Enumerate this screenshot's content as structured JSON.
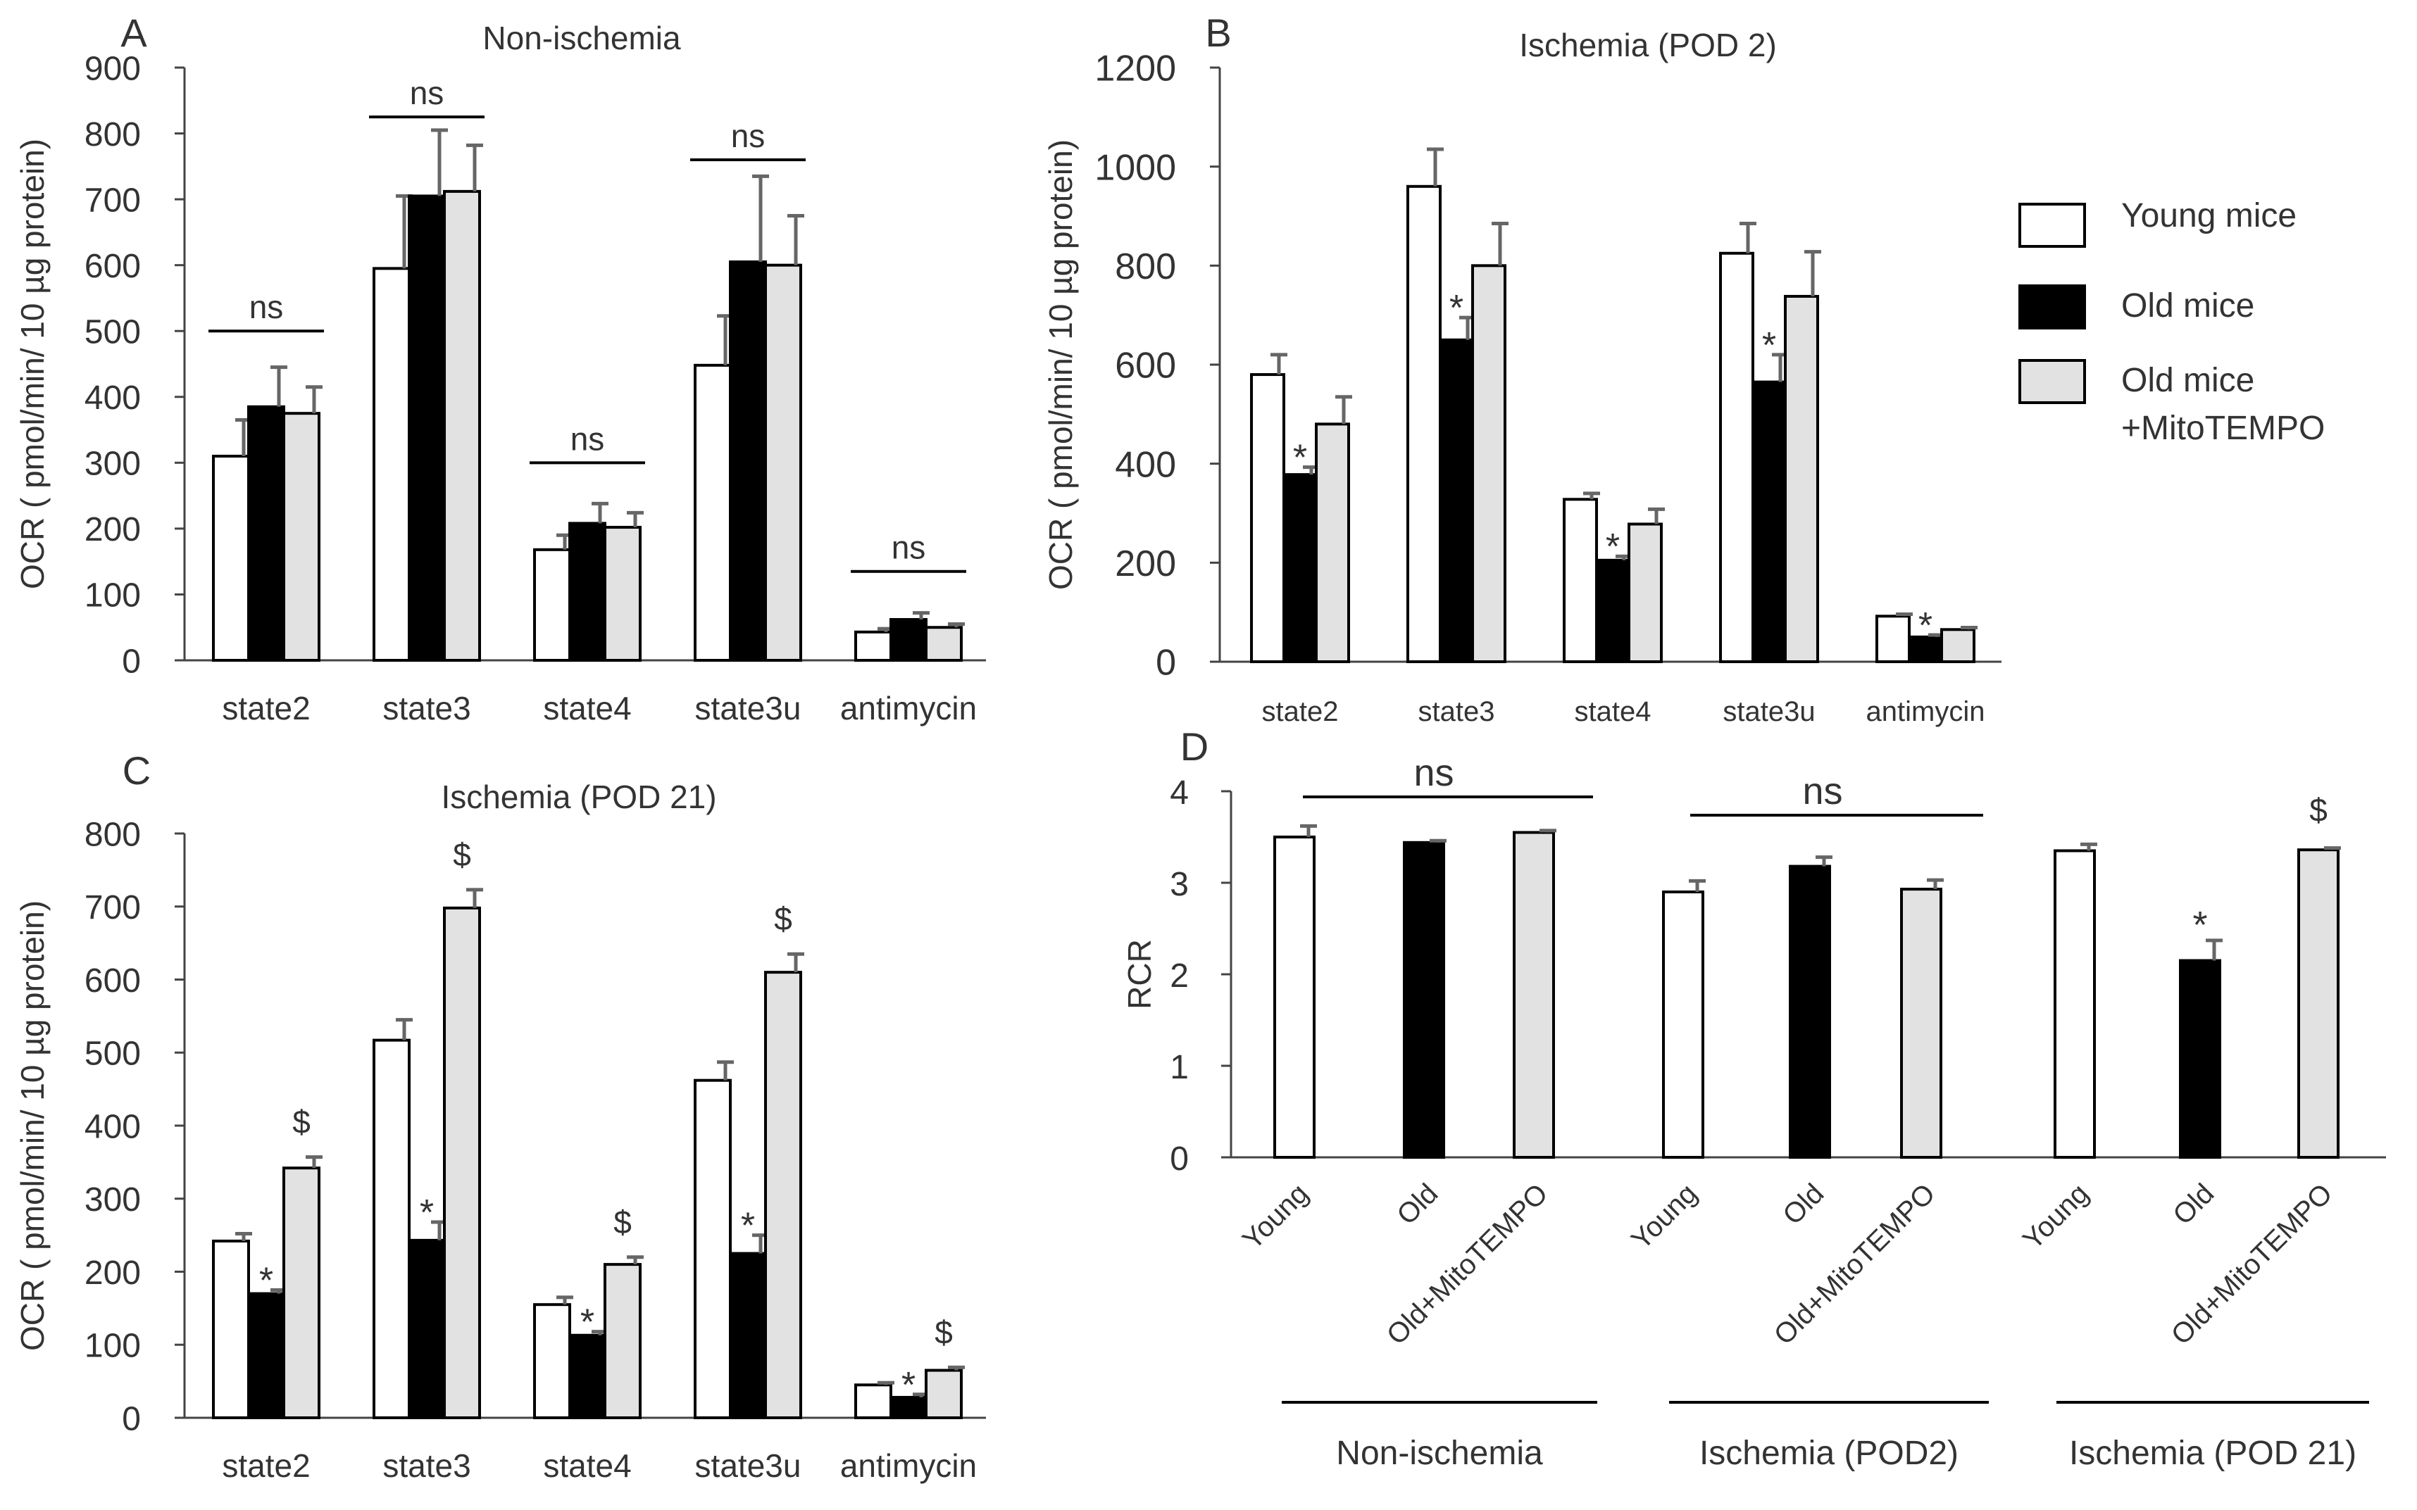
{
  "legend": {
    "items": [
      {
        "label": "Young mice",
        "fill": "#ffffff"
      },
      {
        "label": "Old mice",
        "fill": "#000000"
      },
      {
        "label": "Old mice",
        "label2": "+MitoTEMPO",
        "fill": "#e2e2e2"
      }
    ]
  },
  "chart_data": [
    {
      "id": "A",
      "type": "bar",
      "panel_label": "A",
      "title": "Non-ischemia",
      "ylabel": "OCR ( pmol/min/ 10 µg protein)",
      "xlabel": "",
      "ylim": [
        0,
        900
      ],
      "yticks": [
        0,
        100,
        200,
        300,
        400,
        500,
        600,
        700,
        800,
        900
      ],
      "categories": [
        "state2",
        "state3",
        "state4",
        "state3u",
        "antimycin"
      ],
      "series": [
        {
          "name": "Young mice",
          "color": "#ffffff",
          "values": [
            310,
            595,
            168,
            448,
            43
          ],
          "errors": [
            55,
            110,
            22,
            75,
            5
          ]
        },
        {
          "name": "Old mice",
          "color": "#000000",
          "values": [
            385,
            705,
            208,
            605,
            62
          ],
          "errors": [
            60,
            100,
            30,
            130,
            10
          ]
        },
        {
          "name": "Old mice +MitoTEMPO",
          "color": "#e2e2e2",
          "values": [
            375,
            712,
            202,
            600,
            50
          ],
          "errors": [
            40,
            70,
            22,
            75,
            5
          ]
        }
      ],
      "annotations": [
        {
          "category": "state2",
          "text": "ns",
          "line_value": 500
        },
        {
          "category": "state3",
          "text": "ns",
          "line_value": 825
        },
        {
          "category": "state4",
          "text": "ns",
          "line_value": 300
        },
        {
          "category": "state3u",
          "text": "ns",
          "line_value": 760
        },
        {
          "category": "antimycin",
          "text": "ns",
          "line_value": 135
        }
      ],
      "marks": []
    },
    {
      "id": "B",
      "type": "bar",
      "panel_label": "B",
      "title": "Ischemia (POD 2)",
      "ylabel": "OCR ( pmol/min/ 10 µg protein)",
      "xlabel": "",
      "ylim": [
        0,
        1200
      ],
      "yticks": [
        0,
        200,
        400,
        600,
        800,
        1000,
        1200
      ],
      "categories": [
        "state2",
        "state3",
        "state4",
        "state3u",
        "antimycin"
      ],
      "series": [
        {
          "name": "Young mice",
          "color": "#ffffff",
          "values": [
            580,
            960,
            328,
            825,
            92
          ],
          "errors": [
            40,
            75,
            12,
            60,
            4
          ]
        },
        {
          "name": "Old mice",
          "color": "#000000",
          "values": [
            378,
            650,
            205,
            565,
            50
          ],
          "errors": [
            15,
            45,
            8,
            55,
            4
          ]
        },
        {
          "name": "Old mice +MitoTEMPO",
          "color": "#e2e2e2",
          "values": [
            480,
            800,
            278,
            738,
            65
          ],
          "errors": [
            55,
            85,
            30,
            90,
            4
          ]
        }
      ],
      "annotations": [],
      "marks": [
        {
          "category": "state2",
          "series": 1,
          "text": "*"
        },
        {
          "category": "state3",
          "series": 1,
          "text": "*"
        },
        {
          "category": "state4",
          "series": 1,
          "text": "*"
        },
        {
          "category": "state3u",
          "series": 1,
          "text": "*"
        },
        {
          "category": "antimycin",
          "series": 1,
          "text": "*"
        }
      ]
    },
    {
      "id": "C",
      "type": "bar",
      "panel_label": "C",
      "title": "Ischemia (POD 21)",
      "ylabel": "OCR ( pmol/min/ 10 µg protein)",
      "xlabel": "",
      "ylim": [
        0,
        800
      ],
      "yticks": [
        0,
        100,
        200,
        300,
        400,
        500,
        600,
        700,
        800
      ],
      "categories": [
        "state2",
        "state3",
        "state4",
        "state3u",
        "antimycin"
      ],
      "series": [
        {
          "name": "Young mice",
          "color": "#ffffff",
          "values": [
            242,
            517,
            155,
            462,
            45
          ],
          "errors": [
            10,
            28,
            10,
            25,
            3
          ]
        },
        {
          "name": "Old mice",
          "color": "#000000",
          "values": [
            170,
            243,
            113,
            225,
            28
          ],
          "errors": [
            5,
            25,
            5,
            25,
            4
          ]
        },
        {
          "name": "Old mice +MitoTEMPO",
          "color": "#e2e2e2",
          "values": [
            342,
            698,
            210,
            610,
            65
          ],
          "errors": [
            15,
            25,
            10,
            25,
            4
          ]
        }
      ],
      "annotations": [],
      "marks": [
        {
          "category": "state2",
          "series": 1,
          "text": "*"
        },
        {
          "category": "state2",
          "series": 2,
          "text": "$"
        },
        {
          "category": "state3",
          "series": 1,
          "text": "*"
        },
        {
          "category": "state3",
          "series": 2,
          "text": "$"
        },
        {
          "category": "state4",
          "series": 1,
          "text": "*"
        },
        {
          "category": "state4",
          "series": 2,
          "text": "$"
        },
        {
          "category": "state3u",
          "series": 1,
          "text": "*"
        },
        {
          "category": "state3u",
          "series": 2,
          "text": "$"
        },
        {
          "category": "antimycin",
          "series": 1,
          "text": "*"
        },
        {
          "category": "antimycin",
          "series": 2,
          "text": "$"
        }
      ]
    },
    {
      "id": "D",
      "type": "bar",
      "panel_label": "D",
      "title": "",
      "ylabel": "RCR",
      "xlabel": "",
      "ylim": [
        0,
        4
      ],
      "yticks": [
        0,
        1,
        2,
        3,
        4
      ],
      "groups": [
        {
          "name": "Non-ischemia",
          "labels": [
            "Young",
            "Old",
            "Old+MitoTEMPO"
          ],
          "values": [
            3.5,
            3.44,
            3.55
          ],
          "errors": [
            0.12,
            0.02,
            0.02
          ],
          "fills": [
            "#ffffff",
            "#000000",
            "#e2e2e2"
          ],
          "annotation": "ns",
          "marks": [
            "",
            "",
            ""
          ]
        },
        {
          "name": "Ischemia (POD2)",
          "labels": [
            "Young",
            "Old",
            "Old+MitoTEMPO"
          ],
          "values": [
            2.9,
            3.18,
            2.93
          ],
          "errors": [
            0.12,
            0.1,
            0.1
          ],
          "fills": [
            "#ffffff",
            "#000000",
            "#e2e2e2"
          ],
          "annotation": "ns",
          "marks": [
            "",
            "",
            ""
          ]
        },
        {
          "name": "Ischemia (POD 21)",
          "labels": [
            "Young",
            "Old",
            "Old+MitoTEMPO"
          ],
          "values": [
            3.35,
            2.15,
            3.36
          ],
          "errors": [
            0.07,
            0.22,
            0.02
          ],
          "fills": [
            "#ffffff",
            "#000000",
            "#e2e2e2"
          ],
          "annotation": "",
          "marks": [
            "",
            "*",
            "$"
          ]
        }
      ]
    }
  ]
}
